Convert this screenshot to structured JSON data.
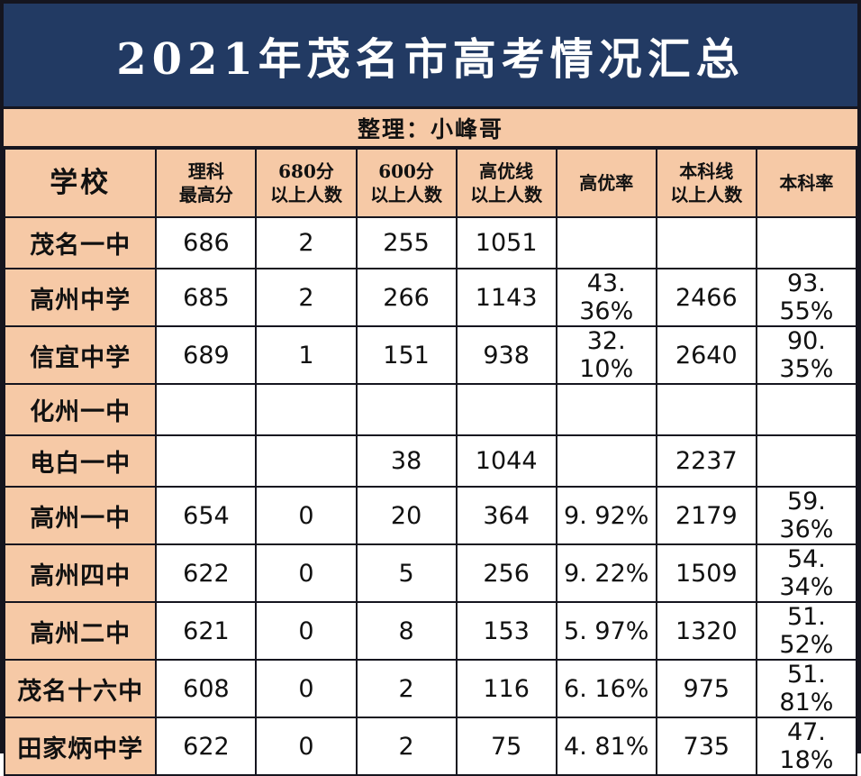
{
  "title": "2021年茂名市高考情况汇总",
  "subtitle": "整理：小峰哥",
  "colors": {
    "title_bg": "#223a63",
    "title_text": "#ffffff",
    "accent_peach": "#f6c9a6",
    "grid_border": "#15151f",
    "cell_bg": "#ffffff",
    "body_text": "#111111"
  },
  "table": {
    "columns": [
      {
        "key": "school",
        "label": "学校"
      },
      {
        "key": "science_top",
        "label": "理科\n最高分"
      },
      {
        "key": "above_680",
        "label": "680分\n以上人数"
      },
      {
        "key": "above_600",
        "label": "600分\n以上人数"
      },
      {
        "key": "above_priority",
        "label": "高优线\n以上人数"
      },
      {
        "key": "priority_rate",
        "label": "高优率"
      },
      {
        "key": "above_undergrad",
        "label": "本科线\n以上人数"
      },
      {
        "key": "undergrad_rate",
        "label": "本科率"
      }
    ],
    "rows": [
      {
        "school": "茂名一中",
        "science_top": "686",
        "above_680": "2",
        "above_600": "255",
        "above_priority": "1051",
        "priority_rate": "",
        "above_undergrad": "",
        "undergrad_rate": ""
      },
      {
        "school": "高州中学",
        "science_top": "685",
        "above_680": "2",
        "above_600": "266",
        "above_priority": "1143",
        "priority_rate": "43. 36%",
        "above_undergrad": "2466",
        "undergrad_rate": "93. 55%"
      },
      {
        "school": "信宜中学",
        "science_top": "689",
        "above_680": "1",
        "above_600": "151",
        "above_priority": "938",
        "priority_rate": "32. 10%",
        "above_undergrad": "2640",
        "undergrad_rate": "90. 35%"
      },
      {
        "school": "化州一中",
        "science_top": "",
        "above_680": "",
        "above_600": "",
        "above_priority": "",
        "priority_rate": "",
        "above_undergrad": "",
        "undergrad_rate": ""
      },
      {
        "school": "电白一中",
        "science_top": "",
        "above_680": "",
        "above_600": "38",
        "above_priority": "1044",
        "priority_rate": "",
        "above_undergrad": "2237",
        "undergrad_rate": ""
      },
      {
        "school": "高州一中",
        "science_top": "654",
        "above_680": "0",
        "above_600": "20",
        "above_priority": "364",
        "priority_rate": "9. 92%",
        "above_undergrad": "2179",
        "undergrad_rate": "59. 36%"
      },
      {
        "school": "高州四中",
        "science_top": "622",
        "above_680": "0",
        "above_600": "5",
        "above_priority": "256",
        "priority_rate": "9. 22%",
        "above_undergrad": "1509",
        "undergrad_rate": "54. 34%"
      },
      {
        "school": "高州二中",
        "science_top": "621",
        "above_680": "0",
        "above_600": "8",
        "above_priority": "153",
        "priority_rate": "5. 97%",
        "above_undergrad": "1320",
        "undergrad_rate": "51. 52%"
      },
      {
        "school": "茂名十六中",
        "science_top": "608",
        "above_680": "0",
        "above_600": "2",
        "above_priority": "116",
        "priority_rate": "6. 16%",
        "above_undergrad": "975",
        "undergrad_rate": "51. 81%"
      },
      {
        "school": "田家炳中学",
        "science_top": "622",
        "above_680": "0",
        "above_600": "2",
        "above_priority": "75",
        "priority_rate": "4. 81%",
        "above_undergrad": "735",
        "undergrad_rate": "47. 18%"
      }
    ]
  },
  "chart_data": {
    "type": "table",
    "title": "2021年茂名市高考情况汇总",
    "subtitle": "整理：小峰哥",
    "columns": [
      "学校",
      "理科最高分",
      "680分以上人数",
      "600分以上人数",
      "高优线以上人数",
      "高优率",
      "本科线以上人数",
      "本科率"
    ],
    "rows": [
      [
        "茂名一中",
        686,
        2,
        255,
        1051,
        null,
        null,
        null
      ],
      [
        "高州中学",
        685,
        2,
        266,
        1143,
        "43.36%",
        2466,
        "93.55%"
      ],
      [
        "信宜中学",
        689,
        1,
        151,
        938,
        "32.10%",
        2640,
        "90.35%"
      ],
      [
        "化州一中",
        null,
        null,
        null,
        null,
        null,
        null,
        null
      ],
      [
        "电白一中",
        null,
        null,
        38,
        1044,
        null,
        2237,
        null
      ],
      [
        "高州一中",
        654,
        0,
        20,
        364,
        "9.92%",
        2179,
        "59.36%"
      ],
      [
        "高州四中",
        622,
        0,
        5,
        256,
        "9.22%",
        1509,
        "54.34%"
      ],
      [
        "高州二中",
        621,
        0,
        8,
        153,
        "5.97%",
        1320,
        "51.52%"
      ],
      [
        "茂名十六中",
        608,
        0,
        2,
        116,
        "6.16%",
        975,
        "51.81%"
      ],
      [
        "田家炳中学",
        622,
        0,
        2,
        75,
        "4.81%",
        735,
        "47.18%"
      ]
    ]
  }
}
